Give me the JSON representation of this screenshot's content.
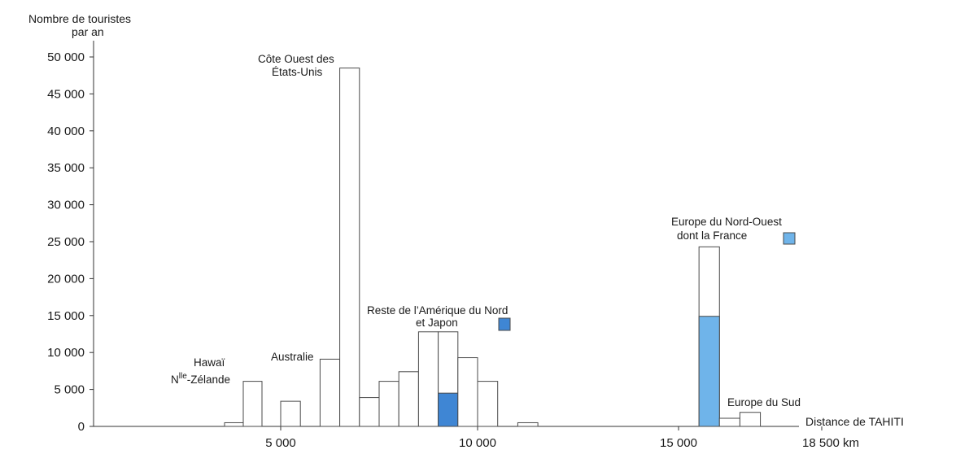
{
  "chart_data": {
    "type": "bar",
    "ylabel_line1": "Nombre de touristes",
    "ylabel_line2": "par an",
    "xlabel": "Distance de TAHITI",
    "ylim": [
      0,
      50000
    ],
    "y_ticks": [
      "0",
      "5 000",
      "10 000",
      "15 000",
      "20 000",
      "25 000",
      "30 000",
      "35 000",
      "40 000",
      "45 000",
      "50 000"
    ],
    "y_tick_values": [
      0,
      5000,
      10000,
      15000,
      20000,
      25000,
      30000,
      35000,
      40000,
      45000,
      50000
    ],
    "x_ticks": [
      "5 000",
      "10 000",
      "15 000",
      "18 500 km"
    ],
    "x_tick_values": [
      5000,
      10000,
      15000,
      18500
    ],
    "bar_width_km": 500,
    "bars": [
      {
        "x": 3750,
        "total": 500,
        "highlight": 0
      },
      {
        "x": 4250,
        "total": 6100,
        "highlight": 0
      },
      {
        "x": 5250,
        "total": 3400,
        "highlight": 0
      },
      {
        "x": 6250,
        "total": 9100,
        "highlight": 0
      },
      {
        "x": 6750,
        "total": 48500,
        "highlight": 0
      },
      {
        "x": 7250,
        "total": 3900,
        "highlight": 0
      },
      {
        "x": 7750,
        "total": 6100,
        "highlight": 0
      },
      {
        "x": 8250,
        "total": 7400,
        "highlight": 0
      },
      {
        "x": 8750,
        "total": 12800,
        "highlight": 0
      },
      {
        "x": 9250,
        "total": 12800,
        "highlight": 4500,
        "highlight_group": "dark"
      },
      {
        "x": 9750,
        "total": 9300,
        "highlight": 0
      },
      {
        "x": 10250,
        "total": 6100,
        "highlight": 0
      },
      {
        "x": 11250,
        "total": 500,
        "highlight": 0
      },
      {
        "x": 15750,
        "total": 24300,
        "highlight": 14900,
        "highlight_group": "light"
      },
      {
        "x": 16250,
        "total": 1100,
        "highlight": 0
      },
      {
        "x": 16750,
        "total": 1900,
        "highlight": 0
      }
    ],
    "annotations": {
      "hawai_line1": "Hawaï",
      "hawai_line2_prefix": "N",
      "hawai_line2_sup": "lle",
      "hawai_line2_suffix": "-Zélande",
      "australie": "Australie",
      "cote_ouest_line1": "Côte Ouest des",
      "cote_ouest_line2": "États-Unis",
      "reste_line1": "Reste de l’Amérique du Nord",
      "reste_line2": "et Japon",
      "europe_no_line1": "Europe du Nord-Ouest",
      "europe_no_line2": "dont la France",
      "europe_sud": "Europe du Sud"
    },
    "colors": {
      "bar_fill": "#ffffff",
      "bar_stroke": "#4a4a4a",
      "highlight_dark": "#3f86d4",
      "highlight_light": "#6fb4ea",
      "axis": "#333333"
    }
  }
}
